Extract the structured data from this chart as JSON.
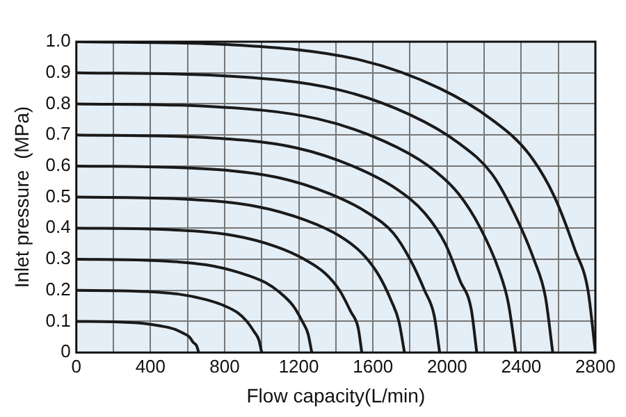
{
  "chart_data": {
    "type": "line",
    "xlabel": "Flow capacity(L/min)",
    "ylabel": "Inlet pressure  (MPa)",
    "xlim": [
      0,
      2800
    ],
    "xticks": [
      0,
      {
        "value": 200,
        "label": null
      },
      400,
      {
        "value": 600,
        "label": null
      },
      800,
      {
        "value": 1000,
        "label": null
      },
      1200,
      {
        "value": 1400,
        "label": null
      },
      1600,
      {
        "value": 1800,
        "label": null
      },
      2000,
      {
        "value": 2200,
        "label": null
      },
      2400,
      {
        "value": 2600,
        "label": null
      },
      2800
    ],
    "ylim": [
      0,
      1.0
    ],
    "yticks": [
      0,
      0.1,
      0.2,
      0.3,
      0.4,
      0.5,
      0.6,
      0.7,
      0.8,
      0.9,
      {
        "value": 1.0,
        "label": "1.0"
      }
    ],
    "grid": true,
    "legend": false,
    "marker": "none",
    "line_style": "solid",
    "series": [
      {
        "color": "#1a1a1a",
        "x": [
          0,
          200,
          360,
          460,
          530,
          570,
          610,
          630,
          650,
          660
        ],
        "values": [
          0.1,
          0.099,
          0.094,
          0.085,
          0.075,
          0.064,
          0.05,
          0.033,
          0.02,
          0
        ]
      },
      {
        "color": "#1a1a1a",
        "x": [
          0,
          300,
          550,
          700,
          800,
          870,
          920,
          960,
          985,
          1000
        ],
        "values": [
          0.2,
          0.198,
          0.188,
          0.17,
          0.15,
          0.128,
          0.1,
          0.066,
          0.04,
          0
        ]
      },
      {
        "color": "#1a1a1a",
        "x": [
          0,
          380,
          700,
          890,
          1020,
          1100,
          1170,
          1220,
          1250,
          1270
        ],
        "values": [
          0.3,
          0.297,
          0.282,
          0.255,
          0.225,
          0.192,
          0.15,
          0.099,
          0.06,
          0
        ]
      },
      {
        "color": "#1a1a1a",
        "x": [
          0,
          460,
          850,
          1080,
          1230,
          1340,
          1420,
          1480,
          1520,
          1540
        ],
        "values": [
          0.4,
          0.396,
          0.376,
          0.34,
          0.3,
          0.256,
          0.2,
          0.132,
          0.08,
          0
        ]
      },
      {
        "color": "#1a1a1a",
        "x": [
          0,
          530,
          970,
          1240,
          1420,
          1540,
          1630,
          1700,
          1740,
          1770
        ],
        "values": [
          0.5,
          0.495,
          0.47,
          0.425,
          0.375,
          0.32,
          0.25,
          0.165,
          0.1,
          0
        ]
      },
      {
        "color": "#1a1a1a",
        "x": [
          0,
          590,
          1080,
          1370,
          1570,
          1710,
          1800,
          1880,
          1930,
          1960
        ],
        "values": [
          0.6,
          0.594,
          0.564,
          0.51,
          0.45,
          0.384,
          0.3,
          0.198,
          0.12,
          0
        ]
      },
      {
        "color": "#1a1a1a",
        "x": [
          0,
          650,
          1190,
          1510,
          1730,
          1880,
          1990,
          2070,
          2130,
          2160
        ],
        "values": [
          0.7,
          0.693,
          0.658,
          0.595,
          0.525,
          0.448,
          0.35,
          0.231,
          0.14,
          0
        ]
      },
      {
        "color": "#1a1a1a",
        "x": [
          0,
          710,
          1300,
          1660,
          1900,
          2060,
          2180,
          2280,
          2330,
          2370
        ],
        "values": [
          0.8,
          0.792,
          0.752,
          0.68,
          0.6,
          0.512,
          0.4,
          0.264,
          0.16,
          0
        ]
      },
      {
        "color": "#1a1a1a",
        "x": [
          0,
          770,
          1410,
          1800,
          2060,
          2240,
          2360,
          2470,
          2530,
          2570
        ],
        "values": [
          0.9,
          0.891,
          0.846,
          0.765,
          0.675,
          0.576,
          0.45,
          0.297,
          0.18,
          0
        ]
      },
      {
        "color": "#1a1a1a",
        "x": [
          0,
          840,
          1540,
          1960,
          2240,
          2440,
          2580,
          2690,
          2760,
          2800
        ],
        "values": [
          1.0,
          0.99,
          0.94,
          0.85,
          0.75,
          0.64,
          0.5,
          0.33,
          0.2,
          0
        ]
      }
    ]
  }
}
